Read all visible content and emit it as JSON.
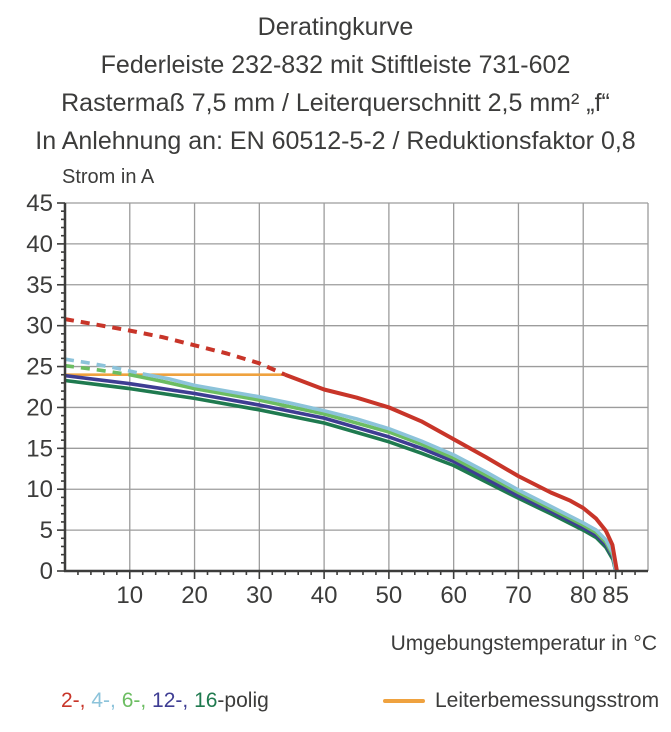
{
  "title": {
    "lines": [
      "Deratingkurve",
      "Federleiste 232-832 mit Stiftleiste 731-602",
      "Rastermaß 7,5 mm / Leiterquerschnitt 2,5 mm² „f“",
      "In Anlehnung an: EN 60512-5-2 / Reduktionsfaktor 0,8"
    ]
  },
  "axes": {
    "y_label": "Strom in A",
    "x_label": "Umgebungstemperatur in °C"
  },
  "legend": {
    "poles": {
      "segments": [
        {
          "text": "2-, ",
          "color": "#c83529"
        },
        {
          "text": "4-, ",
          "color": "#8cc3da"
        },
        {
          "text": "6-, ",
          "color": "#6cbd62"
        },
        {
          "text": "12-, ",
          "color": "#3e3d93"
        },
        {
          "text": "16",
          "color": "#1f7a4f"
        },
        {
          "text": "-polig",
          "color": "#3c3c3b"
        }
      ]
    },
    "rated_current": {
      "label": "Leiterbemessungsstrom",
      "color": "#efa23f"
    }
  },
  "colors": {
    "text": "#3c3c3b",
    "grid": "#9c9c9c",
    "axis": "#3c3c3b"
  },
  "chart_data": {
    "type": "line",
    "title": "Deratingkurve",
    "xlabel": "Umgebungstemperatur in °C",
    "ylabel": "Strom in A",
    "xlim": [
      0,
      90
    ],
    "ylim": [
      0,
      45
    ],
    "grid": true,
    "grid_x_step": 10,
    "grid_y_step": 5,
    "x_minor_step": 2,
    "y_minor_step": 1,
    "x_tick_labels": [
      10,
      20,
      30,
      40,
      50,
      60,
      70,
      80,
      85
    ],
    "y_tick_labels": [
      0,
      5,
      10,
      15,
      20,
      25,
      30,
      35,
      40,
      45
    ],
    "rated_current_A": 24,
    "max_temperature_C": 85,
    "series": [
      {
        "name": "2-polig",
        "color": "#c83529",
        "width": 4,
        "segments": [
          {
            "dashed": true,
            "points": [
              [
                0,
                30.8
              ],
              [
                5,
                30.1
              ],
              [
                10,
                29.4
              ],
              [
                15,
                28.6
              ],
              [
                20,
                27.6
              ],
              [
                25,
                26.6
              ],
              [
                30,
                25.4
              ],
              [
                34,
                24
              ]
            ]
          },
          {
            "dashed": false,
            "points": [
              [
                34,
                24
              ],
              [
                40,
                22.2
              ],
              [
                45,
                21.2
              ],
              [
                50,
                20
              ],
              [
                55,
                18.3
              ],
              [
                60,
                16.1
              ],
              [
                65,
                13.9
              ],
              [
                70,
                11.6
              ],
              [
                75,
                9.6
              ],
              [
                78,
                8.6
              ],
              [
                80,
                7.7
              ],
              [
                82,
                6.4
              ],
              [
                83.5,
                4.9
              ],
              [
                84.5,
                3.2
              ],
              [
                85.2,
                0
              ]
            ]
          }
        ]
      },
      {
        "name": "4-polig",
        "color": "#8cc3da",
        "width": 3.6,
        "segments": [
          {
            "dashed": true,
            "points": [
              [
                0,
                25.9
              ],
              [
                4,
                25.4
              ],
              [
                8,
                24.8
              ],
              [
                12,
                24.1
              ]
            ]
          },
          {
            "dashed": false,
            "points": [
              [
                12,
                24.1
              ],
              [
                16,
                23.5
              ],
              [
                20,
                22.7
              ],
              [
                25,
                22
              ],
              [
                30,
                21.3
              ],
              [
                35,
                20.5
              ],
              [
                40,
                19.6
              ],
              [
                45,
                18.6
              ],
              [
                50,
                17.4
              ],
              [
                55,
                15.9
              ],
              [
                60,
                14.2
              ],
              [
                65,
                12.1
              ],
              [
                70,
                9.9
              ],
              [
                75,
                7.9
              ],
              [
                80,
                5.9
              ],
              [
                82,
                5
              ],
              [
                83.5,
                3.8
              ],
              [
                84.6,
                2.2
              ],
              [
                85,
                0
              ]
            ]
          }
        ]
      },
      {
        "name": "6-polig",
        "color": "#6cbd62",
        "width": 3.6,
        "segments": [
          {
            "dashed": true,
            "points": [
              [
                0,
                25.1
              ],
              [
                5,
                24.6
              ],
              [
                10,
                24
              ]
            ]
          },
          {
            "dashed": false,
            "points": [
              [
                10,
                24
              ],
              [
                15,
                23.2
              ],
              [
                20,
                22.3
              ],
              [
                30,
                20.9
              ],
              [
                40,
                19.2
              ],
              [
                50,
                17
              ],
              [
                55,
                15.5
              ],
              [
                60,
                13.8
              ],
              [
                65,
                11.7
              ],
              [
                70,
                9.6
              ],
              [
                75,
                7.6
              ],
              [
                80,
                5.6
              ],
              [
                82,
                4.7
              ],
              [
                83.5,
                3.5
              ],
              [
                84.6,
                1.9
              ],
              [
                85,
                0
              ]
            ]
          }
        ]
      },
      {
        "name": "12-polig",
        "color": "#3e3d93",
        "width": 3.6,
        "segments": [
          {
            "dashed": false,
            "points": [
              [
                0,
                23.9
              ],
              [
                10,
                22.9
              ],
              [
                20,
                21.7
              ],
              [
                30,
                20.3
              ],
              [
                40,
                18.7
              ],
              [
                50,
                16.4
              ],
              [
                55,
                15
              ],
              [
                60,
                13.4
              ],
              [
                65,
                11.3
              ],
              [
                70,
                9.2
              ],
              [
                75,
                7.3
              ],
              [
                80,
                5.3
              ],
              [
                82,
                4.4
              ],
              [
                83.5,
                3.2
              ],
              [
                84.6,
                1.7
              ],
              [
                85,
                0
              ]
            ]
          }
        ]
      },
      {
        "name": "16-polig",
        "color": "#1f7a4f",
        "width": 3.6,
        "segments": [
          {
            "dashed": false,
            "points": [
              [
                0,
                23.3
              ],
              [
                10,
                22.3
              ],
              [
                20,
                21.1
              ],
              [
                30,
                19.7
              ],
              [
                40,
                18.1
              ],
              [
                50,
                15.8
              ],
              [
                55,
                14.4
              ],
              [
                60,
                12.9
              ],
              [
                65,
                10.9
              ],
              [
                70,
                8.9
              ],
              [
                75,
                7
              ],
              [
                80,
                5
              ],
              [
                82,
                4.1
              ],
              [
                83.5,
                2.9
              ],
              [
                84.6,
                1.4
              ],
              [
                85,
                0
              ]
            ]
          }
        ]
      },
      {
        "name": "Leiterbemessungsstrom",
        "color": "#efa23f",
        "width": 2.6,
        "segments": [
          {
            "dashed": false,
            "points": [
              [
                0,
                24
              ],
              [
                34,
                24
              ]
            ]
          }
        ]
      }
    ]
  }
}
